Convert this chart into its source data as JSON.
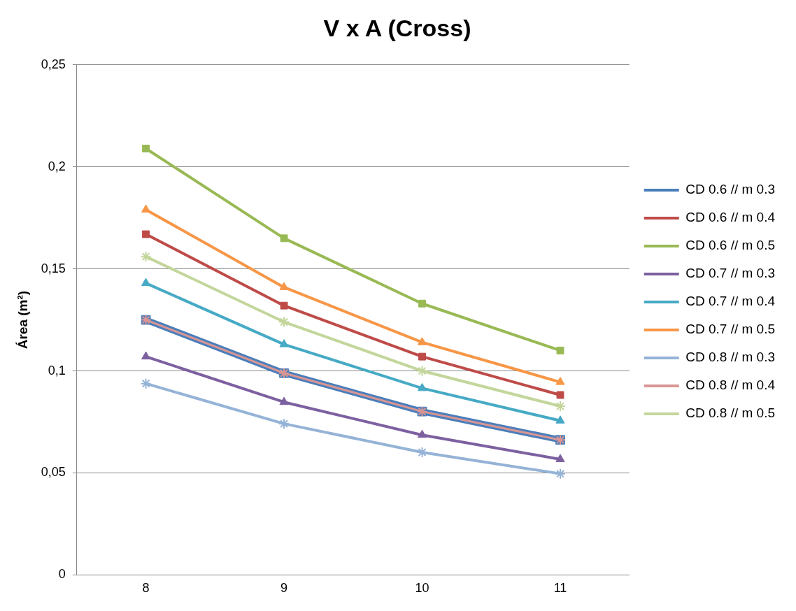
{
  "chart_data": {
    "type": "line",
    "title": "V x A (Cross)",
    "ylabel": "Área (m²)",
    "categories": [
      "8",
      "9",
      "10",
      "11"
    ],
    "ylim": [
      0,
      0.25
    ],
    "yticks": [
      0,
      {
        "value": 0.05,
        "label": "0,05"
      },
      {
        "value": 0.1,
        "label": "0,1"
      },
      {
        "value": 0.15,
        "label": "0,15"
      },
      {
        "value": 0.2,
        "label": "0,2"
      },
      {
        "value": 0.25,
        "label": "0,25"
      }
    ],
    "grid": "y",
    "legend": "right",
    "line_style": "solid",
    "series": [
      {
        "name": "CD 0.6 // m 0.3",
        "color": "#4a7ebb",
        "marker": "square",
        "values": [
          0.125,
          0.0989,
          0.0801,
          0.0662
        ]
      },
      {
        "name": "CD 0.6 // m 0.4",
        "color": "#be4b48",
        "marker": "square",
        "values": [
          0.167,
          0.132,
          0.107,
          0.0882
        ]
      },
      {
        "name": "CD 0.6 // m 0.5",
        "color": "#98b954",
        "marker": "square",
        "values": [
          0.209,
          0.165,
          0.133,
          0.11
        ]
      },
      {
        "name": "CD 0.7 // m 0.3",
        "color": "#7d60a0",
        "marker": "triangle",
        "values": [
          0.107,
          0.0847,
          0.0686,
          0.0567
        ]
      },
      {
        "name": "CD 0.7 // m 0.4",
        "color": "#46aac5",
        "marker": "triangle",
        "values": [
          0.143,
          0.113,
          0.0915,
          0.0756
        ]
      },
      {
        "name": "CD 0.7 // m 0.5",
        "color": "#f79646",
        "marker": "triangle",
        "values": [
          0.179,
          0.141,
          0.114,
          0.0945
        ]
      },
      {
        "name": "CD 0.8 // m 0.3",
        "color": "#95b3d7",
        "marker": "cross",
        "values": [
          0.0938,
          0.0741,
          0.0601,
          0.0496
        ]
      },
      {
        "name": "CD 0.8 // m 0.4",
        "color": "#d99694",
        "marker": "cross",
        "values": [
          0.125,
          0.0989,
          0.0801,
          0.0662
        ]
      },
      {
        "name": "CD 0.8 // m 0.5",
        "color": "#c3d69b",
        "marker": "cross",
        "values": [
          0.156,
          0.124,
          0.1,
          0.0827
        ]
      }
    ]
  }
}
